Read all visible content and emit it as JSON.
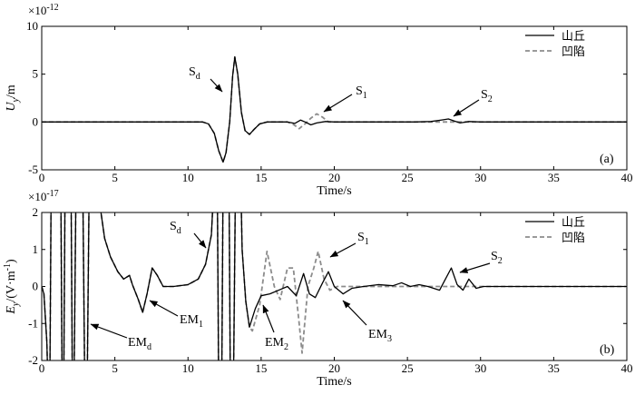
{
  "chart_data": [
    {
      "type": "line",
      "panel_label": "(a)",
      "xlabel": "Time/s",
      "ylabel_main": "U",
      "ylabel_sub": "y",
      "ylabel_unit": "/m",
      "y_multiplier": "×10",
      "y_exponent": "-12",
      "xlim": [
        0,
        40
      ],
      "ylim": [
        -5,
        10
      ],
      "xticks": [
        0,
        5,
        10,
        15,
        20,
        25,
        30,
        35,
        40
      ],
      "yticks": [
        -5,
        0,
        5,
        10
      ],
      "legend": {
        "placement": "top-right"
      },
      "series": [
        {
          "name": "山丘",
          "style": "solid",
          "color": "#000000",
          "points": [
            [
              0,
              0
            ],
            [
              11,
              0
            ],
            [
              11.4,
              -0.2
            ],
            [
              11.8,
              -1.2
            ],
            [
              12.1,
              -3
            ],
            [
              12.4,
              -4.2
            ],
            [
              12.6,
              -3.2
            ],
            [
              12.85,
              0
            ],
            [
              13.05,
              4.8
            ],
            [
              13.2,
              6.8
            ],
            [
              13.4,
              5
            ],
            [
              13.65,
              1
            ],
            [
              13.9,
              -0.9
            ],
            [
              14.2,
              -1.3
            ],
            [
              14.5,
              -0.8
            ],
            [
              14.9,
              -0.2
            ],
            [
              15.4,
              0
            ],
            [
              16.8,
              0
            ],
            [
              17.3,
              -0.15
            ],
            [
              17.7,
              0.2
            ],
            [
              18,
              0
            ],
            [
              18.4,
              -0.3
            ],
            [
              18.8,
              -0.1
            ],
            [
              19.4,
              0.05
            ],
            [
              20,
              0
            ],
            [
              25.5,
              0
            ],
            [
              26.6,
              0.05
            ],
            [
              27.3,
              0.2
            ],
            [
              27.8,
              0.32
            ],
            [
              28.2,
              0.1
            ],
            [
              28.6,
              -0.1
            ],
            [
              29.2,
              0.05
            ],
            [
              30,
              0
            ],
            [
              40,
              0
            ]
          ]
        },
        {
          "name": "凹陷",
          "style": "dashed",
          "color": "#8c8c8c",
          "points": [
            [
              0,
              0
            ],
            [
              11,
              0
            ],
            [
              11.4,
              -0.2
            ],
            [
              11.8,
              -1.2
            ],
            [
              12.1,
              -3
            ],
            [
              12.4,
              -4.2
            ],
            [
              12.6,
              -3.2
            ],
            [
              12.85,
              0
            ],
            [
              13.05,
              4.8
            ],
            [
              13.2,
              6.8
            ],
            [
              13.4,
              5
            ],
            [
              13.65,
              1
            ],
            [
              13.9,
              -0.9
            ],
            [
              14.2,
              -1.3
            ],
            [
              14.5,
              -0.8
            ],
            [
              14.9,
              -0.2
            ],
            [
              15.4,
              0
            ],
            [
              16.8,
              0
            ],
            [
              17.2,
              -0.25
            ],
            [
              17.6,
              -0.7
            ],
            [
              18,
              -0.2
            ],
            [
              18.4,
              0.4
            ],
            [
              18.8,
              0.85
            ],
            [
              19.2,
              0.5
            ],
            [
              19.6,
              0
            ],
            [
              20.2,
              0
            ],
            [
              40,
              0
            ]
          ]
        }
      ],
      "annotations": [
        {
          "main": "S",
          "sub": "d"
        },
        {
          "main": "S",
          "sub": "1"
        },
        {
          "main": "S",
          "sub": "2"
        }
      ]
    },
    {
      "type": "line",
      "panel_label": "(b)",
      "xlabel": "Time/s",
      "ylabel_main": "E",
      "ylabel_sub": "y",
      "ylabel_unit": "/(V·m",
      "ylabel_unit_sup": "-1",
      "ylabel_unit_end": ")",
      "y_multiplier": "×10",
      "y_exponent": "-17",
      "xlim": [
        0,
        40
      ],
      "ylim": [
        -2,
        2
      ],
      "xticks": [
        0,
        5,
        10,
        15,
        20,
        25,
        30,
        35,
        40
      ],
      "yticks": [
        -2,
        -1,
        0,
        1,
        2
      ],
      "legend": {
        "placement": "top-right"
      },
      "series": [
        {
          "name": "山丘",
          "style": "solid",
          "color": "#000000",
          "points": [
            [
              0,
              0
            ],
            [
              0.15,
              -0.2
            ],
            [
              0.35,
              -1.5
            ],
            [
              0.45,
              -3
            ],
            [
              0.55,
              -3
            ],
            [
              0.65,
              3
            ],
            [
              1.3,
              3
            ],
            [
              1.4,
              -3
            ],
            [
              1.5,
              -3
            ],
            [
              1.6,
              3
            ],
            [
              2.0,
              3
            ],
            [
              2.1,
              -3
            ],
            [
              2.2,
              -3
            ],
            [
              2.35,
              3
            ],
            [
              2.8,
              3
            ],
            [
              2.95,
              -3
            ],
            [
              3.1,
              -3
            ],
            [
              3.25,
              3
            ],
            [
              3.95,
              3
            ],
            [
              4.05,
              2
            ],
            [
              4.3,
              1.3
            ],
            [
              4.7,
              0.8
            ],
            [
              5.2,
              0.4
            ],
            [
              5.6,
              0.2
            ],
            [
              6,
              0.3
            ],
            [
              6.2,
              0.05
            ],
            [
              6.6,
              -0.35
            ],
            [
              6.9,
              -0.7
            ],
            [
              7.2,
              -0.2
            ],
            [
              7.55,
              0.5
            ],
            [
              7.9,
              0.3
            ],
            [
              8.3,
              0
            ],
            [
              9,
              0
            ],
            [
              10,
              0.05
            ],
            [
              10.7,
              0.2
            ],
            [
              11.2,
              0.6
            ],
            [
              11.6,
              1.4
            ],
            [
              11.8,
              3
            ],
            [
              12,
              3
            ],
            [
              12.1,
              -3
            ],
            [
              12.3,
              -3
            ],
            [
              12.4,
              3
            ],
            [
              12.8,
              3
            ],
            [
              12.9,
              -3
            ],
            [
              13.1,
              -3
            ],
            [
              13.25,
              3
            ],
            [
              13.6,
              3
            ],
            [
              13.7,
              1
            ],
            [
              13.95,
              -0.4
            ],
            [
              14.2,
              -1.1
            ],
            [
              14.6,
              -0.6
            ],
            [
              15,
              -0.25
            ],
            [
              15.6,
              -0.2
            ],
            [
              16.2,
              -0.1
            ],
            [
              16.8,
              0
            ],
            [
              17.4,
              -0.25
            ],
            [
              17.9,
              0.35
            ],
            [
              18.3,
              -0.2
            ],
            [
              18.7,
              -0.3
            ],
            [
              19.2,
              0.1
            ],
            [
              19.6,
              0.4
            ],
            [
              20,
              0
            ],
            [
              20.6,
              -0.2
            ],
            [
              21.2,
              -0.05
            ],
            [
              22,
              0
            ],
            [
              23,
              0.05
            ],
            [
              24,
              0.02
            ],
            [
              24.6,
              0.1
            ],
            [
              25.2,
              0
            ],
            [
              25.8,
              0.05
            ],
            [
              26.4,
              0
            ],
            [
              27.2,
              -0.1
            ],
            [
              27.6,
              0.2
            ],
            [
              28,
              0.5
            ],
            [
              28.4,
              0.05
            ],
            [
              28.8,
              -0.1
            ],
            [
              29.2,
              0.2
            ],
            [
              29.7,
              -0.05
            ],
            [
              30.2,
              0
            ],
            [
              40,
              0
            ]
          ]
        },
        {
          "name": "凹陷",
          "style": "dashed",
          "color": "#8c8c8c",
          "points": [
            [
              0,
              0
            ],
            [
              0.15,
              -0.2
            ],
            [
              0.35,
              -1.5
            ],
            [
              0.45,
              -3
            ],
            [
              0.55,
              -3
            ],
            [
              0.65,
              3
            ],
            [
              1.3,
              3
            ],
            [
              1.4,
              -3
            ],
            [
              1.5,
              -3
            ],
            [
              1.6,
              3
            ],
            [
              2.0,
              3
            ],
            [
              2.1,
              -3
            ],
            [
              2.2,
              -3
            ],
            [
              2.35,
              3
            ],
            [
              2.8,
              3
            ],
            [
              2.95,
              -3
            ],
            [
              3.1,
              -3
            ],
            [
              3.25,
              3
            ],
            [
              3.95,
              3
            ],
            [
              4.05,
              2
            ],
            [
              4.3,
              1.3
            ],
            [
              4.7,
              0.8
            ],
            [
              5.2,
              0.4
            ],
            [
              5.6,
              0.2
            ],
            [
              6,
              0.3
            ],
            [
              6.2,
              0.05
            ],
            [
              6.6,
              -0.35
            ],
            [
              6.9,
              -0.7
            ],
            [
              7.2,
              -0.2
            ],
            [
              7.55,
              0.5
            ],
            [
              7.9,
              0.3
            ],
            [
              8.3,
              0
            ],
            [
              9,
              0
            ],
            [
              10,
              0.05
            ],
            [
              10.7,
              0.2
            ],
            [
              11.2,
              0.6
            ],
            [
              11.6,
              1.4
            ],
            [
              11.8,
              3
            ],
            [
              12,
              3
            ],
            [
              12.1,
              -3
            ],
            [
              12.3,
              -3
            ],
            [
              12.4,
              3
            ],
            [
              12.8,
              3
            ],
            [
              12.9,
              -3
            ],
            [
              13.1,
              -3
            ],
            [
              13.25,
              3
            ],
            [
              13.6,
              3
            ],
            [
              13.7,
              1
            ],
            [
              13.95,
              -0.4
            ],
            [
              14.2,
              -1.1
            ],
            [
              14.4,
              -1.2
            ],
            [
              14.9,
              -0.5
            ],
            [
              15.4,
              0.95
            ],
            [
              15.9,
              0
            ],
            [
              16.3,
              -0.35
            ],
            [
              16.8,
              0.5
            ],
            [
              17.2,
              0.5
            ],
            [
              17.6,
              -1
            ],
            [
              17.8,
              -1.8
            ],
            [
              18.2,
              0
            ],
            [
              18.6,
              0.5
            ],
            [
              18.9,
              0.95
            ],
            [
              19.3,
              0.2
            ],
            [
              19.7,
              -0.1
            ],
            [
              20.2,
              0
            ],
            [
              21,
              0
            ],
            [
              40,
              0
            ]
          ]
        }
      ],
      "annotations": [
        {
          "main": "S",
          "sub": "d"
        },
        {
          "main": "S",
          "sub": "1"
        },
        {
          "main": "S",
          "sub": "2"
        },
        {
          "main": "EM",
          "sub": "1"
        },
        {
          "main": "EM",
          "sub": "d"
        },
        {
          "main": "EM",
          "sub": "2"
        },
        {
          "main": "EM",
          "sub": "3"
        }
      ]
    }
  ]
}
